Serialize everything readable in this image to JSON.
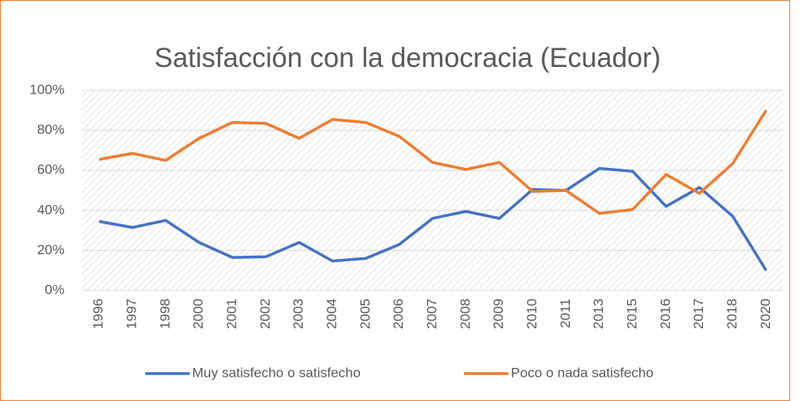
{
  "chart_data": {
    "type": "line",
    "title": "Satisfacción con la democracia (Ecuador)",
    "categories": [
      "1996",
      "1997",
      "1998",
      "2000",
      "2001",
      "2002",
      "2003",
      "2004",
      "2005",
      "2006",
      "2007",
      "2008",
      "2009",
      "2010",
      "2011",
      "2013",
      "2015",
      "2016",
      "2017",
      "2018",
      "2020"
    ],
    "series": [
      {
        "name": "Muy satisfecho o satisfecho",
        "color": "#4472c4",
        "values": [
          34.5,
          31.5,
          35,
          24,
          16.5,
          16.8,
          24,
          14.7,
          16,
          23,
          36,
          39.5,
          36,
          50.5,
          50,
          61,
          59.5,
          42,
          51.5,
          37,
          10
        ]
      },
      {
        "name": "Poco o nada satisfecho",
        "color": "#ed7d31",
        "values": [
          65.5,
          68.5,
          65,
          76,
          84,
          83.5,
          76,
          85.5,
          84,
          77,
          64,
          60.5,
          64,
          49.5,
          50,
          38.5,
          40.5,
          58,
          48.5,
          63.5,
          90
        ]
      }
    ],
    "ylim": [
      0,
      100
    ],
    "yticks": [
      {
        "value": 0,
        "label": "0%"
      },
      {
        "value": 20,
        "label": "20%"
      },
      {
        "value": 40,
        "label": "40%"
      },
      {
        "value": 60,
        "label": "60%"
      },
      {
        "value": 80,
        "label": "80%"
      },
      {
        "value": 100,
        "label": "100%"
      }
    ],
    "grid": true,
    "legend": "bottom"
  }
}
